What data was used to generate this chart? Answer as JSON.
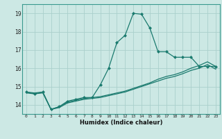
{
  "xlabel": "Humidex (Indice chaleur)",
  "bg_color": "#cce8e4",
  "grid_color": "#aad0cc",
  "line_color": "#1a7a6e",
  "xlim": [
    -0.5,
    23.5
  ],
  "ylim": [
    13.5,
    19.5
  ],
  "yticks": [
    14,
    15,
    16,
    17,
    18,
    19
  ],
  "xticks": [
    0,
    1,
    2,
    3,
    4,
    5,
    6,
    7,
    8,
    9,
    10,
    11,
    12,
    13,
    14,
    15,
    16,
    17,
    18,
    19,
    20,
    21,
    22,
    23
  ],
  "line1_x": [
    0,
    1,
    2,
    3,
    4,
    5,
    6,
    7,
    8,
    9,
    10,
    11,
    12,
    13,
    14,
    15,
    16,
    17,
    18,
    19,
    20,
    21,
    22,
    23
  ],
  "line1_y": [
    14.7,
    14.6,
    14.7,
    13.75,
    13.9,
    14.2,
    14.3,
    14.4,
    14.4,
    15.1,
    16.0,
    17.4,
    17.8,
    19.0,
    18.95,
    18.2,
    16.9,
    16.9,
    16.6,
    16.6,
    16.6,
    16.1,
    16.1,
    16.1
  ],
  "line2_x": [
    0,
    1,
    2,
    3,
    4,
    5,
    6,
    7,
    8,
    9,
    10,
    11,
    12,
    13,
    14,
    15,
    16,
    17,
    18,
    19,
    20,
    21,
    22,
    23
  ],
  "line2_y": [
    14.7,
    14.65,
    14.7,
    13.75,
    13.9,
    14.15,
    14.25,
    14.35,
    14.4,
    14.45,
    14.55,
    14.65,
    14.75,
    14.9,
    15.05,
    15.2,
    15.4,
    15.55,
    15.65,
    15.8,
    16.0,
    16.15,
    16.35,
    16.1
  ],
  "line3_x": [
    0,
    1,
    2,
    3,
    4,
    5,
    6,
    7,
    8,
    9,
    10,
    11,
    12,
    13,
    14,
    15,
    16,
    17,
    18,
    19,
    20,
    21,
    22,
    23
  ],
  "line3_y": [
    14.65,
    14.6,
    14.65,
    13.75,
    13.85,
    14.1,
    14.2,
    14.3,
    14.35,
    14.4,
    14.5,
    14.6,
    14.7,
    14.85,
    15.0,
    15.15,
    15.3,
    15.45,
    15.55,
    15.7,
    15.88,
    16.0,
    16.2,
    15.95
  ]
}
